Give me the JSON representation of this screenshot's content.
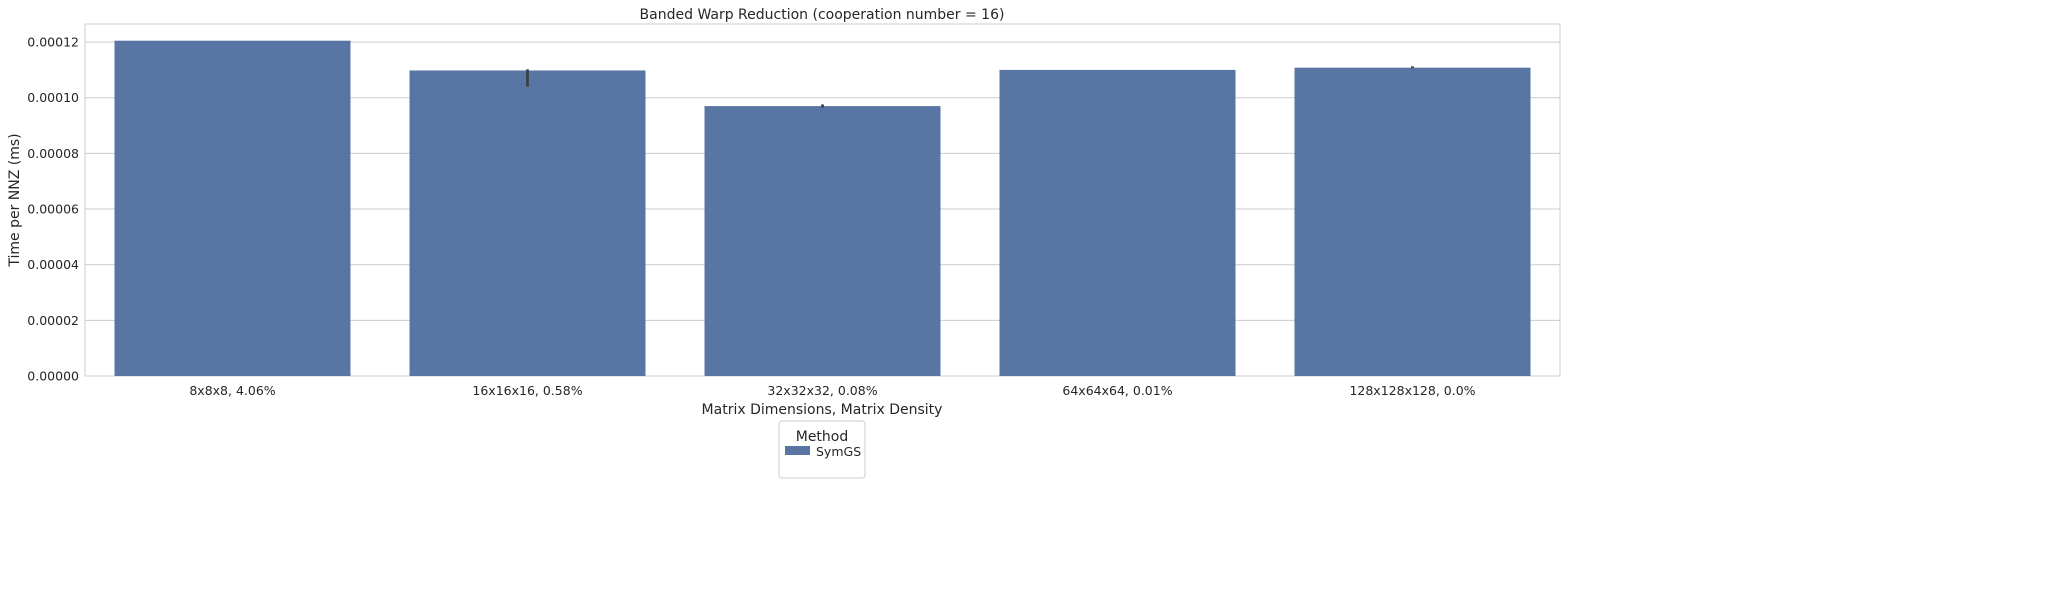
{
  "chart_data": {
    "type": "bar",
    "title": "Banded Warp Reduction (cooperation number = 16)",
    "xlabel": "Matrix Dimensions, Matrix Density",
    "ylabel": "Time per NNZ (ms)",
    "categories": [
      "8x8x8, 4.06%",
      "16x16x16, 0.58%",
      "32x32x32, 0.08%",
      "64x64x64, 0.01%",
      "128x128x128, 0.0%"
    ],
    "series": [
      {
        "name": "SymGS",
        "color": "#5975a4",
        "values": [
          0.0001205,
          0.0001098,
          9.7e-05,
          0.00011,
          0.0001108
        ],
        "error_low": [
          0.0001205,
          0.000104,
          9.65e-05,
          0.00011,
          0.0001106
        ],
        "error_high": [
          0.0001205,
          0.0001102,
          9.76e-05,
          0.00011,
          0.0001113
        ]
      }
    ],
    "ylim": [
      0,
      0.0001265
    ],
    "yticks": [
      "0.00000",
      "0.00002",
      "0.00004",
      "0.00006",
      "0.00008",
      "0.00010",
      "0.00012"
    ],
    "ytick_values": [
      0,
      2e-05,
      4e-05,
      6e-05,
      8e-05,
      0.0001,
      0.00012
    ],
    "grid": true,
    "legend": {
      "title": "Method",
      "placement": "bottom-center"
    }
  }
}
